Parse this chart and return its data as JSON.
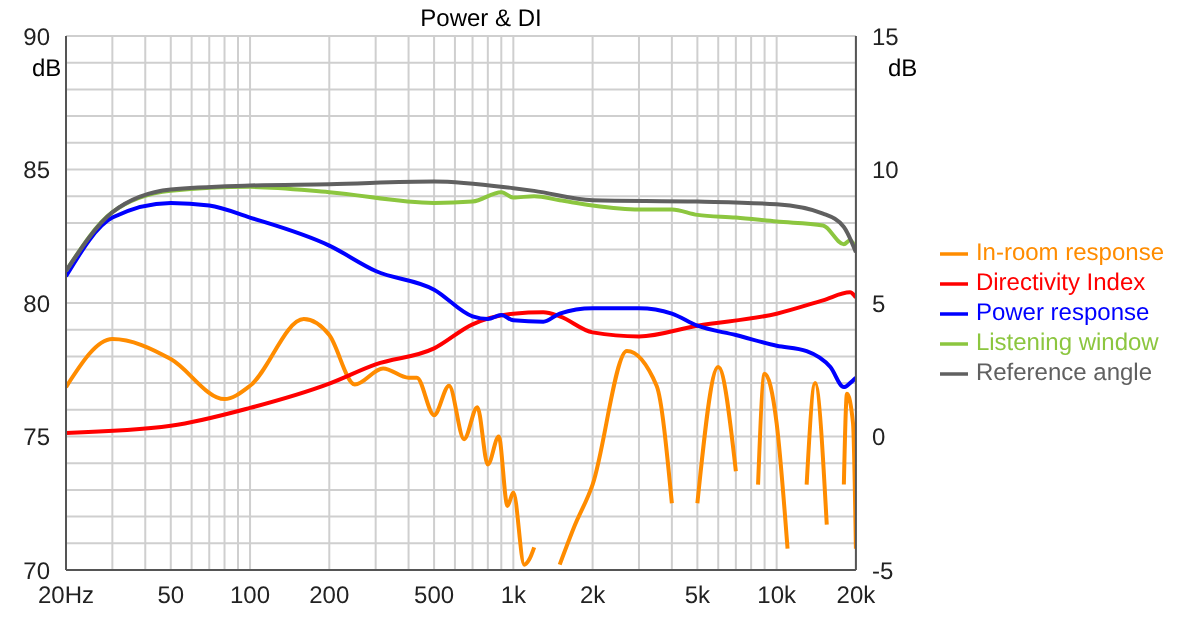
{
  "chart_data": {
    "type": "line",
    "title": "Power & DI",
    "ylabel": "dB",
    "y2label": "dB",
    "log": "x",
    "grid": true,
    "legend": "right",
    "marker": "none",
    "line_style": "solid",
    "xlim": [
      20,
      20000
    ],
    "xticks": [
      {
        "value": 20,
        "label": "20Hz"
      },
      {
        "value": 30,
        "label": null
      },
      {
        "value": 40,
        "label": null
      },
      50,
      {
        "value": 60,
        "label": null
      },
      {
        "value": 70,
        "label": null
      },
      {
        "value": 80,
        "label": null
      },
      {
        "value": 90,
        "label": null
      },
      100,
      200,
      {
        "value": 300,
        "label": null
      },
      {
        "value": 400,
        "label": null
      },
      500,
      {
        "value": 600,
        "label": null
      },
      {
        "value": 700,
        "label": null
      },
      {
        "value": 800,
        "label": null
      },
      {
        "value": 900,
        "label": null
      },
      {
        "value": 1000,
        "label": "1k"
      },
      {
        "value": 2000,
        "label": "2k"
      },
      {
        "value": 3000,
        "label": null
      },
      {
        "value": 4000,
        "label": null
      },
      {
        "value": 5000,
        "label": "5k"
      },
      {
        "value": 6000,
        "label": null
      },
      {
        "value": 7000,
        "label": null
      },
      {
        "value": 8000,
        "label": null
      },
      {
        "value": 9000,
        "label": null
      },
      {
        "value": 10000,
        "label": "10k"
      },
      {
        "value": 20000,
        "label": "20k"
      }
    ],
    "ylim": [
      70,
      90
    ],
    "yticks": [
      70,
      {
        "value": 71,
        "label": null
      },
      {
        "value": 72,
        "label": null
      },
      {
        "value": 73,
        "label": null
      },
      {
        "value": 74,
        "label": null
      },
      75,
      {
        "value": 76,
        "label": null
      },
      {
        "value": 77,
        "label": null
      },
      {
        "value": 78,
        "label": null
      },
      {
        "value": 79,
        "label": null
      },
      80,
      {
        "value": 81,
        "label": null
      },
      {
        "value": 82,
        "label": null
      },
      {
        "value": 83,
        "label": null
      },
      {
        "value": 84,
        "label": null
      },
      85,
      {
        "value": 86,
        "label": null
      },
      {
        "value": 87,
        "label": null
      },
      {
        "value": 88,
        "label": null
      },
      {
        "value": 89,
        "label": null
      },
      90
    ],
    "y2lim": [
      -5,
      15
    ],
    "y2ticks": [
      -5,
      0,
      5,
      10,
      15
    ],
    "series": [
      {
        "name": "In-room response",
        "color": "#ff8c00",
        "x": [
          20,
          30,
          50,
          80,
          100,
          160,
          200,
          250,
          320,
          400,
          430,
          500,
          570,
          650,
          730,
          800,
          880,
          950,
          1000,
          1100,
          1150,
          1200,
          1400,
          1500,
          1700,
          2000,
          2700,
          3500,
          4000,
          4300,
          5000,
          6000,
          7000,
          7500,
          8500,
          9000,
          10000,
          11000,
          12000,
          13000,
          14000,
          15500,
          16500,
          18000,
          18500,
          19500,
          20000
        ],
        "values": [
          76.85,
          78.65,
          77.9,
          76.4,
          76.9,
          79.4,
          78.8,
          76.95,
          77.55,
          77.2,
          77.2,
          75.8,
          76.9,
          74.9,
          76.1,
          73.95,
          75.0,
          72.4,
          72.9,
          70.2,
          70.4,
          70.85,
          null,
          70.2,
          71.6,
          73.2,
          78.2,
          76.9,
          72.5,
          null,
          72.5,
          77.6,
          73.7,
          null,
          73.2,
          77.35,
          75.5,
          70.8,
          null,
          73.2,
          77.0,
          71.7,
          null,
          73.2,
          76.6,
          75.5,
          70.8
        ]
      },
      {
        "name": "Directivity Index",
        "color": "#ff0000",
        "axis": "y2",
        "x": [
          20,
          50,
          100,
          200,
          300,
          500,
          700,
          1000,
          1300,
          1500,
          2000,
          3000,
          5000,
          10000,
          15000,
          19000,
          20000
        ],
        "values": [
          0.13,
          0.4,
          1.07,
          1.98,
          2.7,
          3.3,
          4.2,
          4.6,
          4.65,
          4.5,
          3.9,
          3.75,
          4.15,
          4.6,
          5.1,
          5.4,
          5.2
        ]
      },
      {
        "name": "Power response",
        "color": "#0000ff",
        "x": [
          20,
          30,
          50,
          70,
          100,
          200,
          300,
          500,
          700,
          800,
          900,
          1000,
          1300,
          1500,
          2000,
          3000,
          4000,
          5000,
          7000,
          10000,
          13000,
          16000,
          18000,
          19000,
          20000
        ],
        "values": [
          81.0,
          83.2,
          83.75,
          83.65,
          83.2,
          82.15,
          81.2,
          80.5,
          79.5,
          79.4,
          79.55,
          79.35,
          79.3,
          79.6,
          79.8,
          79.8,
          79.6,
          79.15,
          78.8,
          78.4,
          78.2,
          77.6,
          76.85,
          77.0,
          77.2
        ]
      },
      {
        "name": "Listening window",
        "color": "#8cc63f",
        "x": [
          20,
          30,
          50,
          100,
          200,
          500,
          700,
          900,
          1000,
          1200,
          1500,
          2000,
          3000,
          4000,
          5000,
          7000,
          10000,
          15000,
          18000,
          19000,
          20000
        ],
        "values": [
          81.2,
          83.4,
          84.2,
          84.35,
          84.15,
          83.75,
          83.8,
          84.15,
          83.95,
          84.0,
          83.85,
          83.65,
          83.5,
          83.5,
          83.3,
          83.2,
          83.05,
          82.9,
          82.2,
          82.35,
          82.05
        ]
      },
      {
        "name": "Reference angle",
        "color": "#606060",
        "x": [
          20,
          30,
          50,
          100,
          200,
          500,
          1000,
          1200,
          2000,
          5000,
          10000,
          15000,
          18000,
          20000
        ],
        "values": [
          81.2,
          83.4,
          84.25,
          84.4,
          84.45,
          84.55,
          84.3,
          84.2,
          83.85,
          83.8,
          83.7,
          83.35,
          82.85,
          81.9
        ]
      }
    ]
  }
}
